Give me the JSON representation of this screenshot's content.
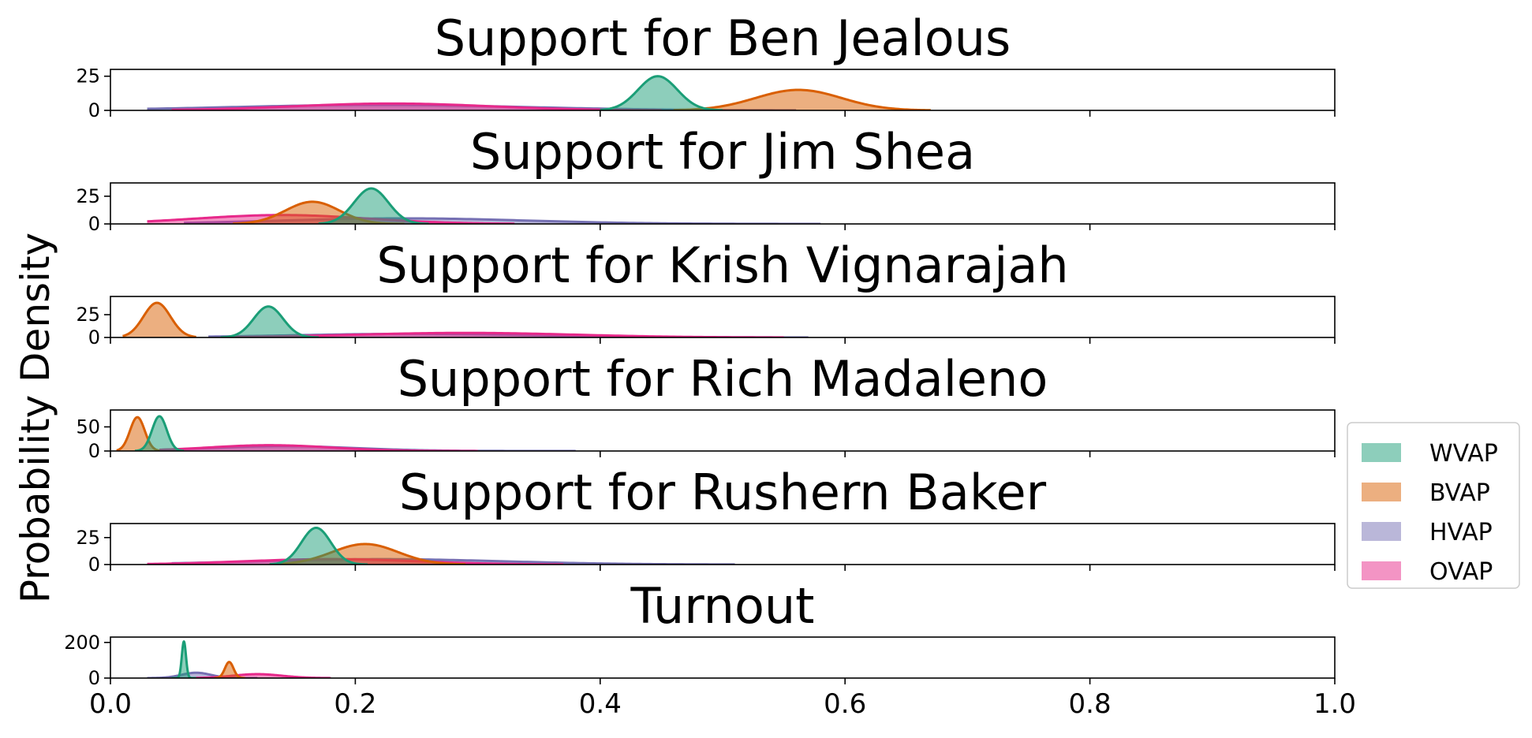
{
  "chart_data": {
    "type": "area",
    "ylabel": "Probability Density",
    "xlim": [
      0.0,
      1.0
    ],
    "x_ticks": [
      0.0,
      0.2,
      0.4,
      0.6,
      0.8,
      1.0
    ],
    "x_tick_labels": [
      "0.0",
      "0.2",
      "0.4",
      "0.6",
      "0.8",
      "1.0"
    ],
    "legend": {
      "placement": "center-right",
      "entries": [
        {
          "name": "WVAP",
          "color": "#1b9e77"
        },
        {
          "name": "BVAP",
          "color": "#d95f02"
        },
        {
          "name": "HVAP",
          "color": "#7570b3"
        },
        {
          "name": "OVAP",
          "color": "#e7298a"
        }
      ]
    },
    "panels": [
      {
        "title": "Support for Ben Jealous",
        "ylim": [
          0,
          30
        ],
        "y_ticks": [
          0,
          25
        ],
        "y_tick_labels": [
          "0",
          "25"
        ],
        "series": [
          {
            "name": "WVAP",
            "mean": 0.447,
            "sd": 0.016,
            "peak": 25,
            "min": 0.4,
            "max": 0.5
          },
          {
            "name": "BVAP",
            "mean": 0.562,
            "sd": 0.035,
            "peak": 15,
            "min": 0.46,
            "max": 0.67
          },
          {
            "name": "HVAP",
            "mean": 0.22,
            "sd": 0.12,
            "peak": 4,
            "min": 0.03,
            "max": 0.56
          },
          {
            "name": "OVAP",
            "mean": 0.23,
            "sd": 0.08,
            "peak": 5,
            "min": 0.05,
            "max": 0.45
          }
        ]
      },
      {
        "title": "Support for Jim Shea",
        "ylim": [
          0,
          37
        ],
        "y_ticks": [
          0,
          25
        ],
        "y_tick_labels": [
          "0",
          "25"
        ],
        "series": [
          {
            "name": "WVAP",
            "mean": 0.213,
            "sd": 0.014,
            "peak": 32,
            "min": 0.17,
            "max": 0.26
          },
          {
            "name": "BVAP",
            "mean": 0.165,
            "sd": 0.022,
            "peak": 20,
            "min": 0.1,
            "max": 0.24
          },
          {
            "name": "HVAP",
            "mean": 0.24,
            "sd": 0.1,
            "peak": 5,
            "min": 0.06,
            "max": 0.58
          },
          {
            "name": "OVAP",
            "mean": 0.14,
            "sd": 0.07,
            "peak": 8,
            "min": 0.03,
            "max": 0.33
          }
        ]
      },
      {
        "title": "Support for Krish Vignarajah",
        "ylim": [
          0,
          45
        ],
        "y_ticks": [
          0,
          25
        ],
        "y_tick_labels": [
          "0",
          "25"
        ],
        "series": [
          {
            "name": "WVAP",
            "mean": 0.129,
            "sd": 0.012,
            "peak": 34,
            "min": 0.09,
            "max": 0.17
          },
          {
            "name": "BVAP",
            "mean": 0.038,
            "sd": 0.011,
            "peak": 38,
            "min": 0.01,
            "max": 0.07
          },
          {
            "name": "HVAP",
            "mean": 0.25,
            "sd": 0.1,
            "peak": 4,
            "min": 0.08,
            "max": 0.57
          },
          {
            "name": "OVAP",
            "mean": 0.29,
            "sd": 0.09,
            "peak": 5,
            "min": 0.1,
            "max": 0.55
          }
        ]
      },
      {
        "title": "Support for Rich Madaleno",
        "ylim": [
          0,
          85
        ],
        "y_ticks": [
          0,
          50
        ],
        "y_tick_labels": [
          "0",
          "50"
        ],
        "series": [
          {
            "name": "WVAP",
            "mean": 0.04,
            "sd": 0.006,
            "peak": 72,
            "min": 0.02,
            "max": 0.06
          },
          {
            "name": "BVAP",
            "mean": 0.022,
            "sd": 0.006,
            "peak": 70,
            "min": 0.005,
            "max": 0.04
          },
          {
            "name": "HVAP",
            "mean": 0.14,
            "sd": 0.06,
            "peak": 10,
            "min": 0.04,
            "max": 0.38
          },
          {
            "name": "OVAP",
            "mean": 0.13,
            "sd": 0.05,
            "peak": 12,
            "min": 0.04,
            "max": 0.3
          }
        ]
      },
      {
        "title": "Support for Rushern Baker",
        "ylim": [
          0,
          38
        ],
        "y_ticks": [
          0,
          25
        ],
        "y_tick_labels": [
          "0",
          "25"
        ],
        "series": [
          {
            "name": "WVAP",
            "mean": 0.168,
            "sd": 0.012,
            "peak": 34,
            "min": 0.13,
            "max": 0.21
          },
          {
            "name": "BVAP",
            "mean": 0.208,
            "sd": 0.027,
            "peak": 19,
            "min": 0.13,
            "max": 0.29
          },
          {
            "name": "HVAP",
            "mean": 0.22,
            "sd": 0.1,
            "peak": 5,
            "min": 0.05,
            "max": 0.51
          },
          {
            "name": "OVAP",
            "mean": 0.18,
            "sd": 0.07,
            "peak": 5,
            "min": 0.03,
            "max": 0.37
          }
        ]
      },
      {
        "title": "Turnout",
        "ylim": [
          0,
          230
        ],
        "y_ticks": [
          0,
          200
        ],
        "y_tick_labels": [
          "0",
          "200"
        ],
        "series": [
          {
            "name": "WVAP",
            "mean": 0.06,
            "sd": 0.0017,
            "peak": 205,
            "min": 0.05,
            "max": 0.07
          },
          {
            "name": "BVAP",
            "mean": 0.097,
            "sd": 0.0035,
            "peak": 90,
            "min": 0.085,
            "max": 0.11
          },
          {
            "name": "HVAP",
            "mean": 0.07,
            "sd": 0.012,
            "peak": 30,
            "min": 0.03,
            "max": 0.12
          },
          {
            "name": "OVAP",
            "mean": 0.12,
            "sd": 0.02,
            "peak": 22,
            "min": 0.07,
            "max": 0.18
          }
        ]
      }
    ]
  }
}
